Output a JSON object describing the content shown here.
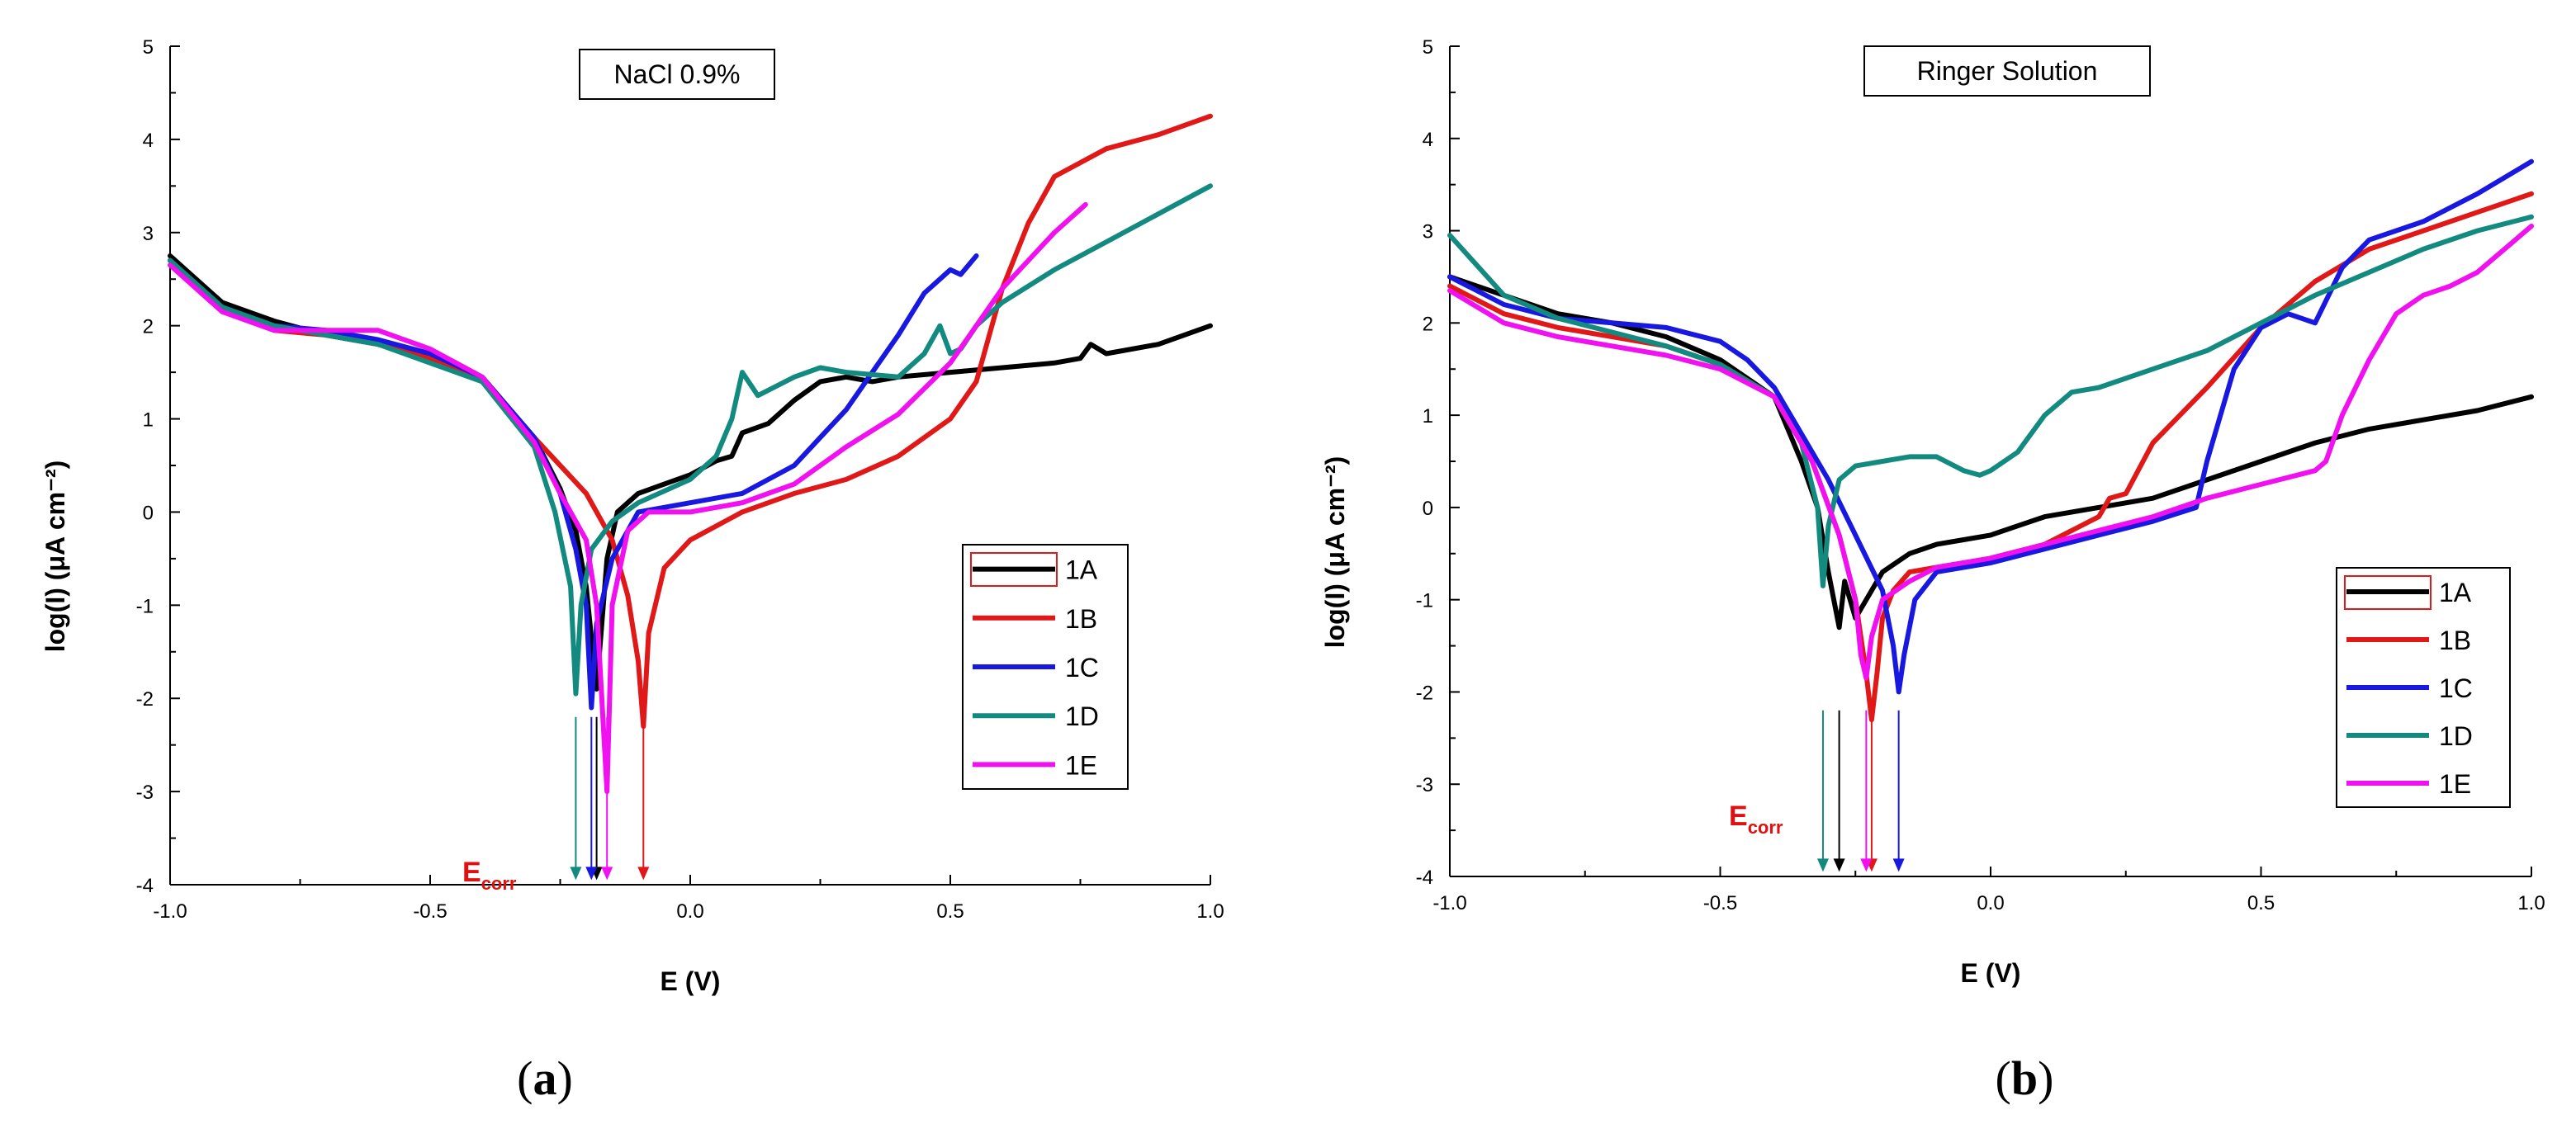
{
  "chart_data": [
    {
      "type": "line",
      "caption_letter": "a",
      "title": "NaCl 0.9%",
      "xlabel": "E (V)",
      "ylabel": "log(I) (μA cm⁻²)",
      "xlim": [
        -1.0,
        1.0
      ],
      "ylim": [
        -4,
        5
      ],
      "xticks": [
        "-1.0",
        "-0.5",
        "0.0",
        "0.5",
        "1.0"
      ],
      "xtick_values": [
        -1.0,
        -0.5,
        0.0,
        0.5,
        1.0
      ],
      "yticks": [
        "-4",
        "-3",
        "-2",
        "-1",
        "0",
        "1",
        "2",
        "3",
        "4",
        "5"
      ],
      "ytick_values": [
        -4,
        -3,
        -2,
        -1,
        0,
        1,
        2,
        3,
        4,
        5
      ],
      "annotation": "E",
      "annotation_sub": "corr",
      "legend_position": "lower-right",
      "series": [
        {
          "name": "1A",
          "color": "#000000",
          "ecorr": -0.18,
          "x": [
            -1.0,
            -0.9,
            -0.8,
            -0.7,
            -0.6,
            -0.5,
            -0.4,
            -0.3,
            -0.25,
            -0.22,
            -0.2,
            -0.18,
            -0.16,
            -0.14,
            -0.1,
            -0.05,
            0.0,
            0.05,
            0.08,
            0.1,
            0.15,
            0.2,
            0.25,
            0.3,
            0.35,
            0.4,
            0.5,
            0.6,
            0.7,
            0.75,
            0.77,
            0.8,
            0.9,
            1.0
          ],
          "y": [
            2.75,
            2.25,
            2.05,
            1.9,
            1.8,
            1.65,
            1.45,
            0.8,
            0.25,
            -0.2,
            -0.8,
            -1.9,
            -0.5,
            0.0,
            0.2,
            0.3,
            0.4,
            0.55,
            0.6,
            0.85,
            0.95,
            1.2,
            1.4,
            1.45,
            1.4,
            1.45,
            1.5,
            1.55,
            1.6,
            1.65,
            1.8,
            1.7,
            1.8,
            2.0
          ]
        },
        {
          "name": "1B",
          "color": "#e01818",
          "ecorr": -0.09,
          "x": [
            -1.0,
            -0.9,
            -0.8,
            -0.7,
            -0.6,
            -0.5,
            -0.4,
            -0.3,
            -0.2,
            -0.15,
            -0.12,
            -0.1,
            -0.09,
            -0.08,
            -0.05,
            0.0,
            0.1,
            0.2,
            0.3,
            0.4,
            0.5,
            0.55,
            0.6,
            0.65,
            0.7,
            0.8,
            0.9,
            1.0
          ],
          "y": [
            2.7,
            2.2,
            1.95,
            1.9,
            1.8,
            1.65,
            1.4,
            0.8,
            0.2,
            -0.3,
            -0.9,
            -1.6,
            -2.3,
            -1.3,
            -0.6,
            -0.3,
            0.0,
            0.2,
            0.35,
            0.6,
            1.0,
            1.4,
            2.4,
            3.1,
            3.6,
            3.9,
            4.05,
            4.25
          ]
        },
        {
          "name": "1C",
          "color": "#1818e0",
          "ecorr": -0.19,
          "x": [
            -1.0,
            -0.9,
            -0.8,
            -0.7,
            -0.6,
            -0.5,
            -0.4,
            -0.3,
            -0.25,
            -0.22,
            -0.2,
            -0.19,
            -0.18,
            -0.15,
            -0.1,
            0.0,
            0.1,
            0.2,
            0.25,
            0.3,
            0.35,
            0.4,
            0.45,
            0.5,
            0.52,
            0.55
          ],
          "y": [
            2.7,
            2.2,
            2.0,
            1.95,
            1.85,
            1.7,
            1.45,
            0.8,
            0.2,
            -0.4,
            -1.0,
            -2.1,
            -1.2,
            -0.5,
            0.0,
            0.1,
            0.2,
            0.5,
            0.8,
            1.1,
            1.5,
            1.9,
            2.35,
            2.6,
            2.55,
            2.75
          ]
        },
        {
          "name": "1D",
          "color": "#138a80",
          "ecorr": -0.22,
          "x": [
            -1.0,
            -0.9,
            -0.8,
            -0.7,
            -0.6,
            -0.5,
            -0.4,
            -0.3,
            -0.26,
            -0.23,
            -0.22,
            -0.21,
            -0.19,
            -0.15,
            -0.1,
            0.0,
            0.05,
            0.08,
            0.1,
            0.13,
            0.2,
            0.25,
            0.3,
            0.4,
            0.45,
            0.48,
            0.5,
            0.52,
            0.55,
            0.6,
            0.7,
            0.8,
            0.9,
            1.0
          ],
          "y": [
            2.7,
            2.2,
            2.0,
            1.9,
            1.8,
            1.6,
            1.4,
            0.7,
            0.0,
            -0.8,
            -1.95,
            -1.0,
            -0.4,
            -0.1,
            0.1,
            0.35,
            0.6,
            1.0,
            1.5,
            1.25,
            1.45,
            1.55,
            1.5,
            1.45,
            1.7,
            2.0,
            1.7,
            1.75,
            2.0,
            2.25,
            2.6,
            2.9,
            3.2,
            3.5
          ]
        },
        {
          "name": "1E",
          "color": "#f010f0",
          "ecorr": -0.16,
          "x": [
            -1.0,
            -0.9,
            -0.8,
            -0.7,
            -0.6,
            -0.5,
            -0.4,
            -0.3,
            -0.25,
            -0.2,
            -0.18,
            -0.16,
            -0.15,
            -0.12,
            -0.08,
            0.0,
            0.1,
            0.2,
            0.3,
            0.4,
            0.5,
            0.6,
            0.7,
            0.76
          ],
          "y": [
            2.65,
            2.15,
            1.95,
            1.95,
            1.95,
            1.75,
            1.45,
            0.75,
            0.2,
            -0.3,
            -1.0,
            -3.0,
            -1.0,
            -0.2,
            0.0,
            0.0,
            0.1,
            0.3,
            0.7,
            1.05,
            1.6,
            2.4,
            3.0,
            3.3
          ]
        }
      ]
    },
    {
      "type": "line",
      "caption_letter": "b",
      "title": "Ringer Solution",
      "xlabel": "E (V)",
      "ylabel": "log(I) (μA cm⁻²)",
      "xlim": [
        -1.0,
        1.0
      ],
      "ylim": [
        -4,
        5
      ],
      "xticks": [
        "-1.0",
        "-0.5",
        "0.0",
        "0.5",
        "1.0"
      ],
      "xtick_values": [
        -1.0,
        -0.5,
        0.0,
        0.5,
        1.0
      ],
      "yticks": [
        "-4",
        "-3",
        "-2",
        "-1",
        "0",
        "1",
        "2",
        "3",
        "4",
        "5"
      ],
      "ytick_values": [
        -4,
        -3,
        -2,
        -1,
        0,
        1,
        2,
        3,
        4,
        5
      ],
      "annotation": "E",
      "annotation_sub": "corr",
      "legend_position": "lower-right",
      "series": [
        {
          "name": "1A",
          "color": "#000000",
          "ecorr": -0.28,
          "x": [
            -1.0,
            -0.9,
            -0.8,
            -0.7,
            -0.6,
            -0.5,
            -0.4,
            -0.35,
            -0.32,
            -0.3,
            -0.28,
            -0.27,
            -0.25,
            -0.22,
            -0.2,
            -0.15,
            -0.1,
            -0.05,
            0.0,
            0.05,
            0.1,
            0.2,
            0.3,
            0.4,
            0.5,
            0.6,
            0.7,
            0.8,
            0.9,
            1.0
          ],
          "y": [
            2.5,
            2.3,
            2.1,
            2.0,
            1.85,
            1.6,
            1.2,
            0.5,
            0.0,
            -0.7,
            -1.3,
            -0.8,
            -1.2,
            -0.9,
            -0.7,
            -0.5,
            -0.4,
            -0.35,
            -0.3,
            -0.2,
            -0.1,
            0.0,
            0.1,
            0.3,
            0.5,
            0.7,
            0.85,
            0.95,
            1.05,
            1.2
          ]
        },
        {
          "name": "1B",
          "color": "#e01818",
          "ecorr": -0.22,
          "x": [
            -1.0,
            -0.9,
            -0.8,
            -0.7,
            -0.6,
            -0.5,
            -0.4,
            -0.33,
            -0.28,
            -0.25,
            -0.23,
            -0.22,
            -0.21,
            -0.2,
            -0.18,
            -0.15,
            -0.1,
            0.0,
            0.1,
            0.2,
            0.22,
            0.25,
            0.3,
            0.4,
            0.5,
            0.6,
            0.7,
            0.8,
            0.9,
            1.0
          ],
          "y": [
            2.4,
            2.1,
            1.95,
            1.85,
            1.75,
            1.55,
            1.2,
            0.5,
            -0.3,
            -1.0,
            -1.8,
            -2.3,
            -1.8,
            -1.2,
            -0.9,
            -0.7,
            -0.65,
            -0.55,
            -0.4,
            -0.1,
            0.1,
            0.15,
            0.7,
            1.3,
            1.95,
            2.45,
            2.8,
            3.0,
            3.2,
            3.4
          ]
        },
        {
          "name": "1C",
          "color": "#1818e0",
          "ecorr": -0.17,
          "x": [
            -1.0,
            -0.9,
            -0.8,
            -0.7,
            -0.6,
            -0.5,
            -0.45,
            -0.4,
            -0.35,
            -0.3,
            -0.25,
            -0.2,
            -0.18,
            -0.17,
            -0.16,
            -0.14,
            -0.1,
            0.0,
            0.1,
            0.2,
            0.3,
            0.38,
            0.4,
            0.45,
            0.5,
            0.55,
            0.6,
            0.65,
            0.7,
            0.8,
            0.9,
            1.0
          ],
          "y": [
            2.5,
            2.2,
            2.05,
            2.0,
            1.95,
            1.8,
            1.6,
            1.3,
            0.8,
            0.3,
            -0.3,
            -0.9,
            -1.5,
            -2.0,
            -1.6,
            -1.0,
            -0.7,
            -0.6,
            -0.45,
            -0.3,
            -0.15,
            0.0,
            0.5,
            1.5,
            1.95,
            2.1,
            2.0,
            2.6,
            2.9,
            3.1,
            3.4,
            3.75
          ]
        },
        {
          "name": "1D",
          "color": "#138a80",
          "ecorr": -0.31,
          "x": [
            -1.0,
            -0.9,
            -0.8,
            -0.7,
            -0.6,
            -0.5,
            -0.4,
            -0.35,
            -0.32,
            -0.31,
            -0.3,
            -0.28,
            -0.25,
            -0.2,
            -0.15,
            -0.1,
            -0.05,
            -0.02,
            0.0,
            0.05,
            0.1,
            0.15,
            0.2,
            0.3,
            0.4,
            0.5,
            0.6,
            0.7,
            0.8,
            0.9,
            1.0
          ],
          "y": [
            2.95,
            2.3,
            2.05,
            1.9,
            1.75,
            1.55,
            1.2,
            0.7,
            0.0,
            -0.85,
            -0.2,
            0.3,
            0.45,
            0.5,
            0.55,
            0.55,
            0.4,
            0.35,
            0.4,
            0.6,
            1.0,
            1.25,
            1.3,
            1.5,
            1.7,
            2.0,
            2.3,
            2.55,
            2.8,
            3.0,
            3.15
          ]
        },
        {
          "name": "1E",
          "color": "#f010f0",
          "ecorr": -0.23,
          "x": [
            -1.0,
            -0.9,
            -0.8,
            -0.7,
            -0.6,
            -0.5,
            -0.4,
            -0.33,
            -0.28,
            -0.25,
            -0.24,
            -0.23,
            -0.22,
            -0.2,
            -0.15,
            -0.1,
            0.0,
            0.1,
            0.2,
            0.3,
            0.4,
            0.5,
            0.6,
            0.62,
            0.65,
            0.7,
            0.75,
            0.8,
            0.85,
            0.9,
            1.0
          ],
          "y": [
            2.35,
            2.0,
            1.85,
            1.75,
            1.65,
            1.5,
            1.2,
            0.5,
            -0.3,
            -1.0,
            -1.6,
            -1.85,
            -1.4,
            -1.0,
            -0.8,
            -0.65,
            -0.55,
            -0.4,
            -0.25,
            -0.1,
            0.1,
            0.25,
            0.4,
            0.5,
            1.0,
            1.6,
            2.1,
            2.3,
            2.4,
            2.55,
            3.05
          ]
        }
      ]
    }
  ]
}
